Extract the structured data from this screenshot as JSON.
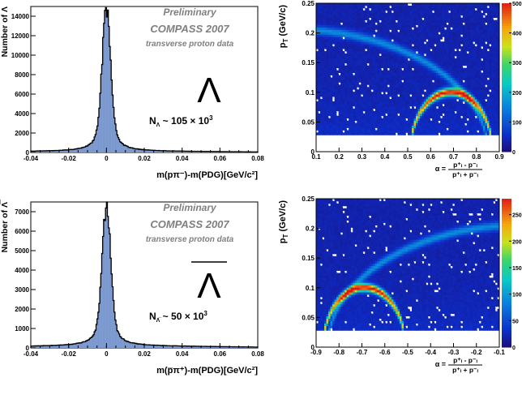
{
  "chart_data": [
    {
      "type": "bar",
      "id": "lambda-mass",
      "ylabel": "Number of Λ",
      "xlabel": "m(pπ⁻)-m(PDG)[GeV/c²]",
      "xlim": [
        -0.04,
        0.08
      ],
      "ylim": [
        0,
        15000
      ],
      "xticks": [
        "-0.04",
        "-0.02",
        "0",
        "0.02",
        "0.04",
        "0.06",
        "0.08"
      ],
      "yticks": [
        "0",
        "2000",
        "4000",
        "6000",
        "8000",
        "10000",
        "12000",
        "14000"
      ],
      "legend_lines": [
        "Preliminary",
        "COMPASS 2007",
        "transverse proton data"
      ],
      "symbol": "Λ",
      "count_label": "N",
      "count_sub": "Λ",
      "count_text": " ~ 105",
      "count_mult": "×",
      "count_exp_base": "10",
      "count_exp": "3",
      "peak": 14500,
      "sigma": 0.0022,
      "gamma": 0.004,
      "background": 150,
      "color": "#7b99cf"
    },
    {
      "type": "heatmap",
      "id": "lambda-ap",
      "ylabel": "p",
      "ylabel_sub": "T",
      "ylabel_unit": " (GeV/c)",
      "xlim": [
        0.1,
        0.9
      ],
      "ylim": [
        0,
        0.25
      ],
      "xticks": [
        "0.1",
        "0.2",
        "0.3",
        "0.4",
        "0.5",
        "0.6",
        "0.7",
        "0.8",
        "0.9"
      ],
      "yticks": [
        "0.05",
        "0.1",
        "0.15",
        "0.2",
        "0.25"
      ],
      "zmax": 500,
      "zticks": [
        "100",
        "200",
        "300",
        "400",
        "500"
      ],
      "alpha_label": "α =",
      "alpha_num": "p⁺ₗ - p⁻ₗ",
      "alpha_den": "p⁺ₗ + p⁻ₗ",
      "ellipse_center": 0.69,
      "ellipse_halfwidth": 0.18,
      "ellipse_height": 0.101,
      "k0_center": 0.0,
      "k0_halfwidth": 0.85,
      "k0_height": 0.206
    },
    {
      "type": "bar",
      "id": "antilambda-mass",
      "ylabel": "Number of Λ̅",
      "xlabel": "m(p̅π⁺)-m(PDG)[GeV/c²]",
      "xlim": [
        -0.04,
        0.08
      ],
      "ylim": [
        0,
        7500
      ],
      "xticks": [
        "-0.04",
        "-0.02",
        "0",
        "0.02",
        "0.04",
        "0.06",
        "0.08"
      ],
      "yticks": [
        "0",
        "1000",
        "2000",
        "3000",
        "4000",
        "5000",
        "6000",
        "7000"
      ],
      "legend_lines": [
        "Preliminary",
        "COMPASS 2007",
        "transverse proton data"
      ],
      "symbol": "Λ",
      "count_label": "N",
      "count_sub": "Λ̅",
      "count_text": " ~ 50",
      "count_mult": "×",
      "count_exp_base": "10",
      "count_exp": "3",
      "peak": 7200,
      "sigma": 0.0022,
      "gamma": 0.004,
      "background": 120,
      "color": "#7b99cf"
    },
    {
      "type": "heatmap",
      "id": "antilambda-ap",
      "ylabel": "p",
      "ylabel_sub": "T",
      "ylabel_unit": " (GeV/c)",
      "xlim": [
        -0.9,
        -0.1
      ],
      "ylim": [
        0,
        0.25
      ],
      "xticks": [
        "-0.9",
        "-0.8",
        "-0.7",
        "-0.6",
        "-0.5",
        "-0.4",
        "-0.3",
        "-0.2",
        "-0.1"
      ],
      "yticks": [
        "0.05",
        "0.1",
        "0.15",
        "0.2",
        "0.25"
      ],
      "zmax": 280,
      "zticks": [
        "50",
        "100",
        "150",
        "200",
        "250"
      ],
      "alpha_label": "α =",
      "alpha_num": "p⁺ₗ - p⁻ₗ",
      "alpha_den": "p⁺ₗ + p⁻ₗ",
      "ellipse_center": -0.69,
      "ellipse_halfwidth": 0.18,
      "ellipse_height": 0.101,
      "k0_center": 0.0,
      "k0_halfwidth": 0.85,
      "k0_height": 0.206
    }
  ]
}
